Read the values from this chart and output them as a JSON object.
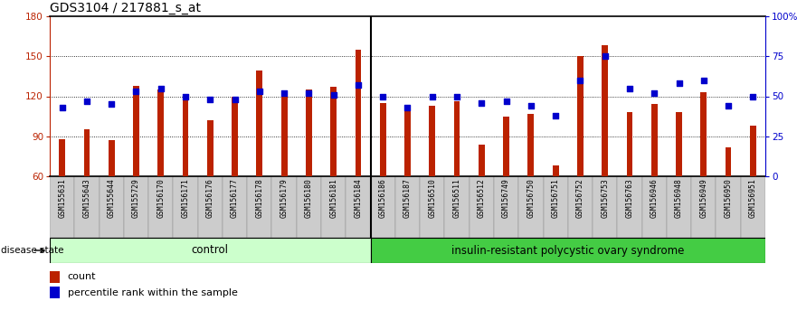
{
  "title": "GDS3104 / 217881_s_at",
  "samples": [
    "GSM155631",
    "GSM155643",
    "GSM155644",
    "GSM155729",
    "GSM156170",
    "GSM156171",
    "GSM156176",
    "GSM156177",
    "GSM156178",
    "GSM156179",
    "GSM156180",
    "GSM156181",
    "GSM156184",
    "GSM156186",
    "GSM156187",
    "GSM156510",
    "GSM156511",
    "GSM156512",
    "GSM156749",
    "GSM156750",
    "GSM156751",
    "GSM156752",
    "GSM156753",
    "GSM156763",
    "GSM156946",
    "GSM156948",
    "GSM156949",
    "GSM156950",
    "GSM156951"
  ],
  "bar_values": [
    88,
    95,
    87,
    128,
    125,
    120,
    102,
    120,
    139,
    122,
    125,
    127,
    155,
    115,
    113,
    113,
    116,
    84,
    105,
    107,
    68,
    150,
    158,
    108,
    114,
    108,
    123,
    82,
    98
  ],
  "percentile_values": [
    43,
    47,
    45,
    53,
    55,
    50,
    48,
    48,
    53,
    52,
    52,
    51,
    57,
    50,
    43,
    50,
    50,
    46,
    47,
    44,
    38,
    60,
    75,
    55,
    52,
    58,
    60,
    44,
    50
  ],
  "n_control": 13,
  "ymin": 60,
  "ymax": 180,
  "bar_color": "#bb2200",
  "dot_color": "#0000cc",
  "control_color": "#ccffcc",
  "disease_color": "#44cc44",
  "control_label": "control",
  "disease_label": "insulin-resistant polycystic ovary syndrome",
  "legend_bar": "count",
  "legend_dot": "percentile rank within the sample",
  "disease_state_label": "disease state"
}
